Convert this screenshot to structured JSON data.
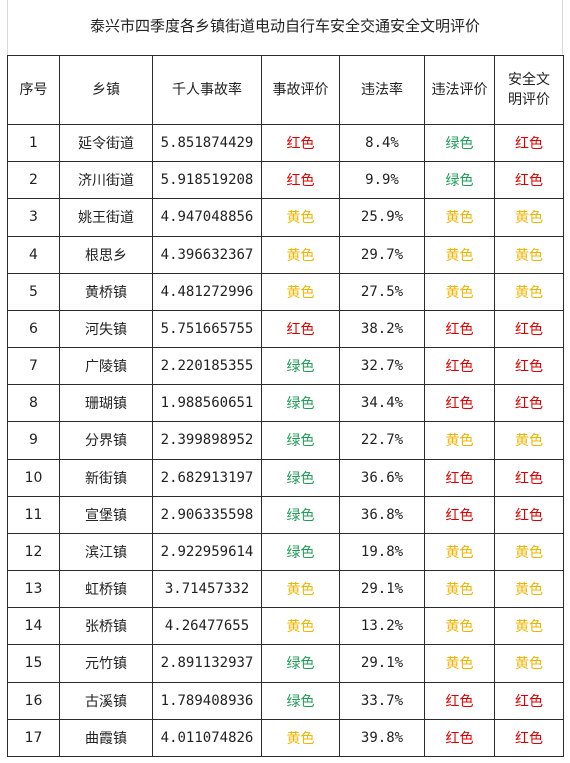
{
  "title": "泰兴市四季度各乡镇街道电动自行车安全交通安全文明评价",
  "colors": {
    "红色": "#e00000",
    "黄色": "#f0b400",
    "绿色": "#1f9d55"
  },
  "headers": [
    "序号",
    "乡镇",
    "千人事故率",
    "事故评价",
    "违法率",
    "违法评价",
    "安全文明评价"
  ],
  "rows": [
    [
      "1",
      "延令街道",
      "5.851874429",
      "红色",
      "8.4%",
      "绿色",
      "红色"
    ],
    [
      "2",
      "济川街道",
      "5.918519208",
      "红色",
      "9.9%",
      "绿色",
      "红色"
    ],
    [
      "3",
      "姚王街道",
      "4.947048856",
      "黄色",
      "25.9%",
      "黄色",
      "黄色"
    ],
    [
      "4",
      "根思乡",
      "4.396632367",
      "黄色",
      "29.7%",
      "黄色",
      "黄色"
    ],
    [
      "5",
      "黄桥镇",
      "4.481272996",
      "黄色",
      "27.5%",
      "黄色",
      "黄色"
    ],
    [
      "6",
      "河失镇",
      "5.751665755",
      "红色",
      "38.2%",
      "红色",
      "红色"
    ],
    [
      "7",
      "广陵镇",
      "2.220185355",
      "绿色",
      "32.7%",
      "红色",
      "红色"
    ],
    [
      "8",
      "珊瑚镇",
      "1.988560651",
      "绿色",
      "34.4%",
      "红色",
      "红色"
    ],
    [
      "9",
      "分界镇",
      "2.399898952",
      "绿色",
      "22.7%",
      "黄色",
      "黄色"
    ],
    [
      "10",
      "新街镇",
      "2.682913197",
      "绿色",
      "36.6%",
      "红色",
      "红色"
    ],
    [
      "11",
      "宣堡镇",
      "2.906335598",
      "绿色",
      "36.8%",
      "红色",
      "红色"
    ],
    [
      "12",
      "滨江镇",
      "2.922959614",
      "绿色",
      "19.8%",
      "黄色",
      "黄色"
    ],
    [
      "13",
      "虹桥镇",
      "3.71457332",
      "黄色",
      "29.1%",
      "黄色",
      "黄色"
    ],
    [
      "14",
      "张桥镇",
      "4.26477655",
      "黄色",
      "13.2%",
      "黄色",
      "黄色"
    ],
    [
      "15",
      "元竹镇",
      "2.891132937",
      "绿色",
      "29.1%",
      "黄色",
      "黄色"
    ],
    [
      "16",
      "古溪镇",
      "1.789408936",
      "绿色",
      "33.7%",
      "红色",
      "红色"
    ],
    [
      "17",
      "曲霞镇",
      "4.011074826",
      "黄色",
      "39.8%",
      "红色",
      "红色"
    ]
  ]
}
